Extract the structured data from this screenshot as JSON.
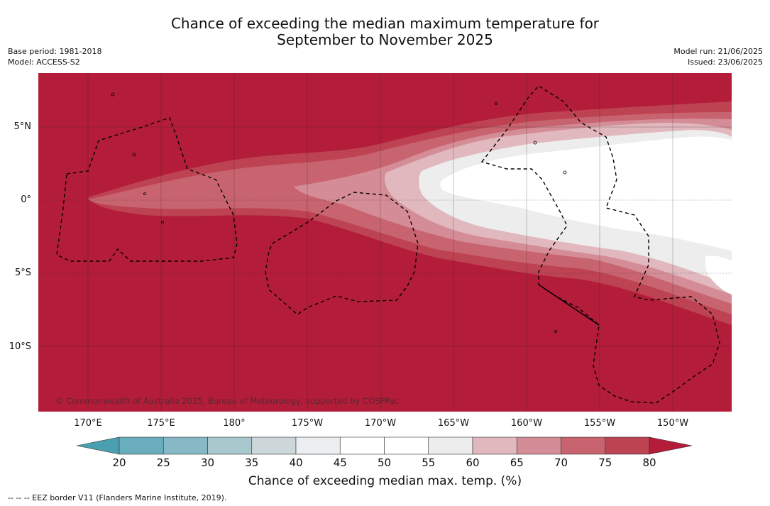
{
  "title_line1": "Chance of exceeding the median maximum temperature for",
  "title_line2": "September to November 2025",
  "base_period": "Base period: 1981-2018",
  "model": "Model: ACCESS-S2",
  "model_run": "Model run: 21/06/2025",
  "issued": "Issued: 23/06/2025",
  "copyright": "© Commonwealth of Australia 2025, Bureau of Meteorology, supported by COSPPac",
  "lat_labels": [
    "5°N",
    "0°",
    "5°S",
    "10°S"
  ],
  "lon_labels": [
    "170°E",
    "175°E",
    "180°",
    "175°W",
    "170°W",
    "165°W",
    "160°W",
    "155°W",
    "150°W"
  ],
  "colorbar": {
    "title": "Chance of exceeding median max. temp. (%)",
    "ticks": [
      "20",
      "25",
      "30",
      "35",
      "40",
      "45",
      "50",
      "55",
      "60",
      "65",
      "70",
      "75",
      "80"
    ],
    "colors": {
      "below20": "#4a9fb0",
      "20-25": "#6aaebe",
      "25-30": "#86b9c5",
      "30-35": "#a8c8cd",
      "35-40": "#cdd7da",
      "40-45": "#ebeff2",
      "45-50": "#ffffff",
      "50-55": "#ffffff",
      "55-60": "#ededed",
      "60-65": "#e0b8bd",
      "65-70": "#d48c96",
      "70-75": "#c8646f",
      "75-80": "#bd4352",
      "above80": "#b31d3a"
    }
  },
  "legend_text": "--  --  -- EEZ border V11 (Flanders Marine Institute, 2019)."
}
